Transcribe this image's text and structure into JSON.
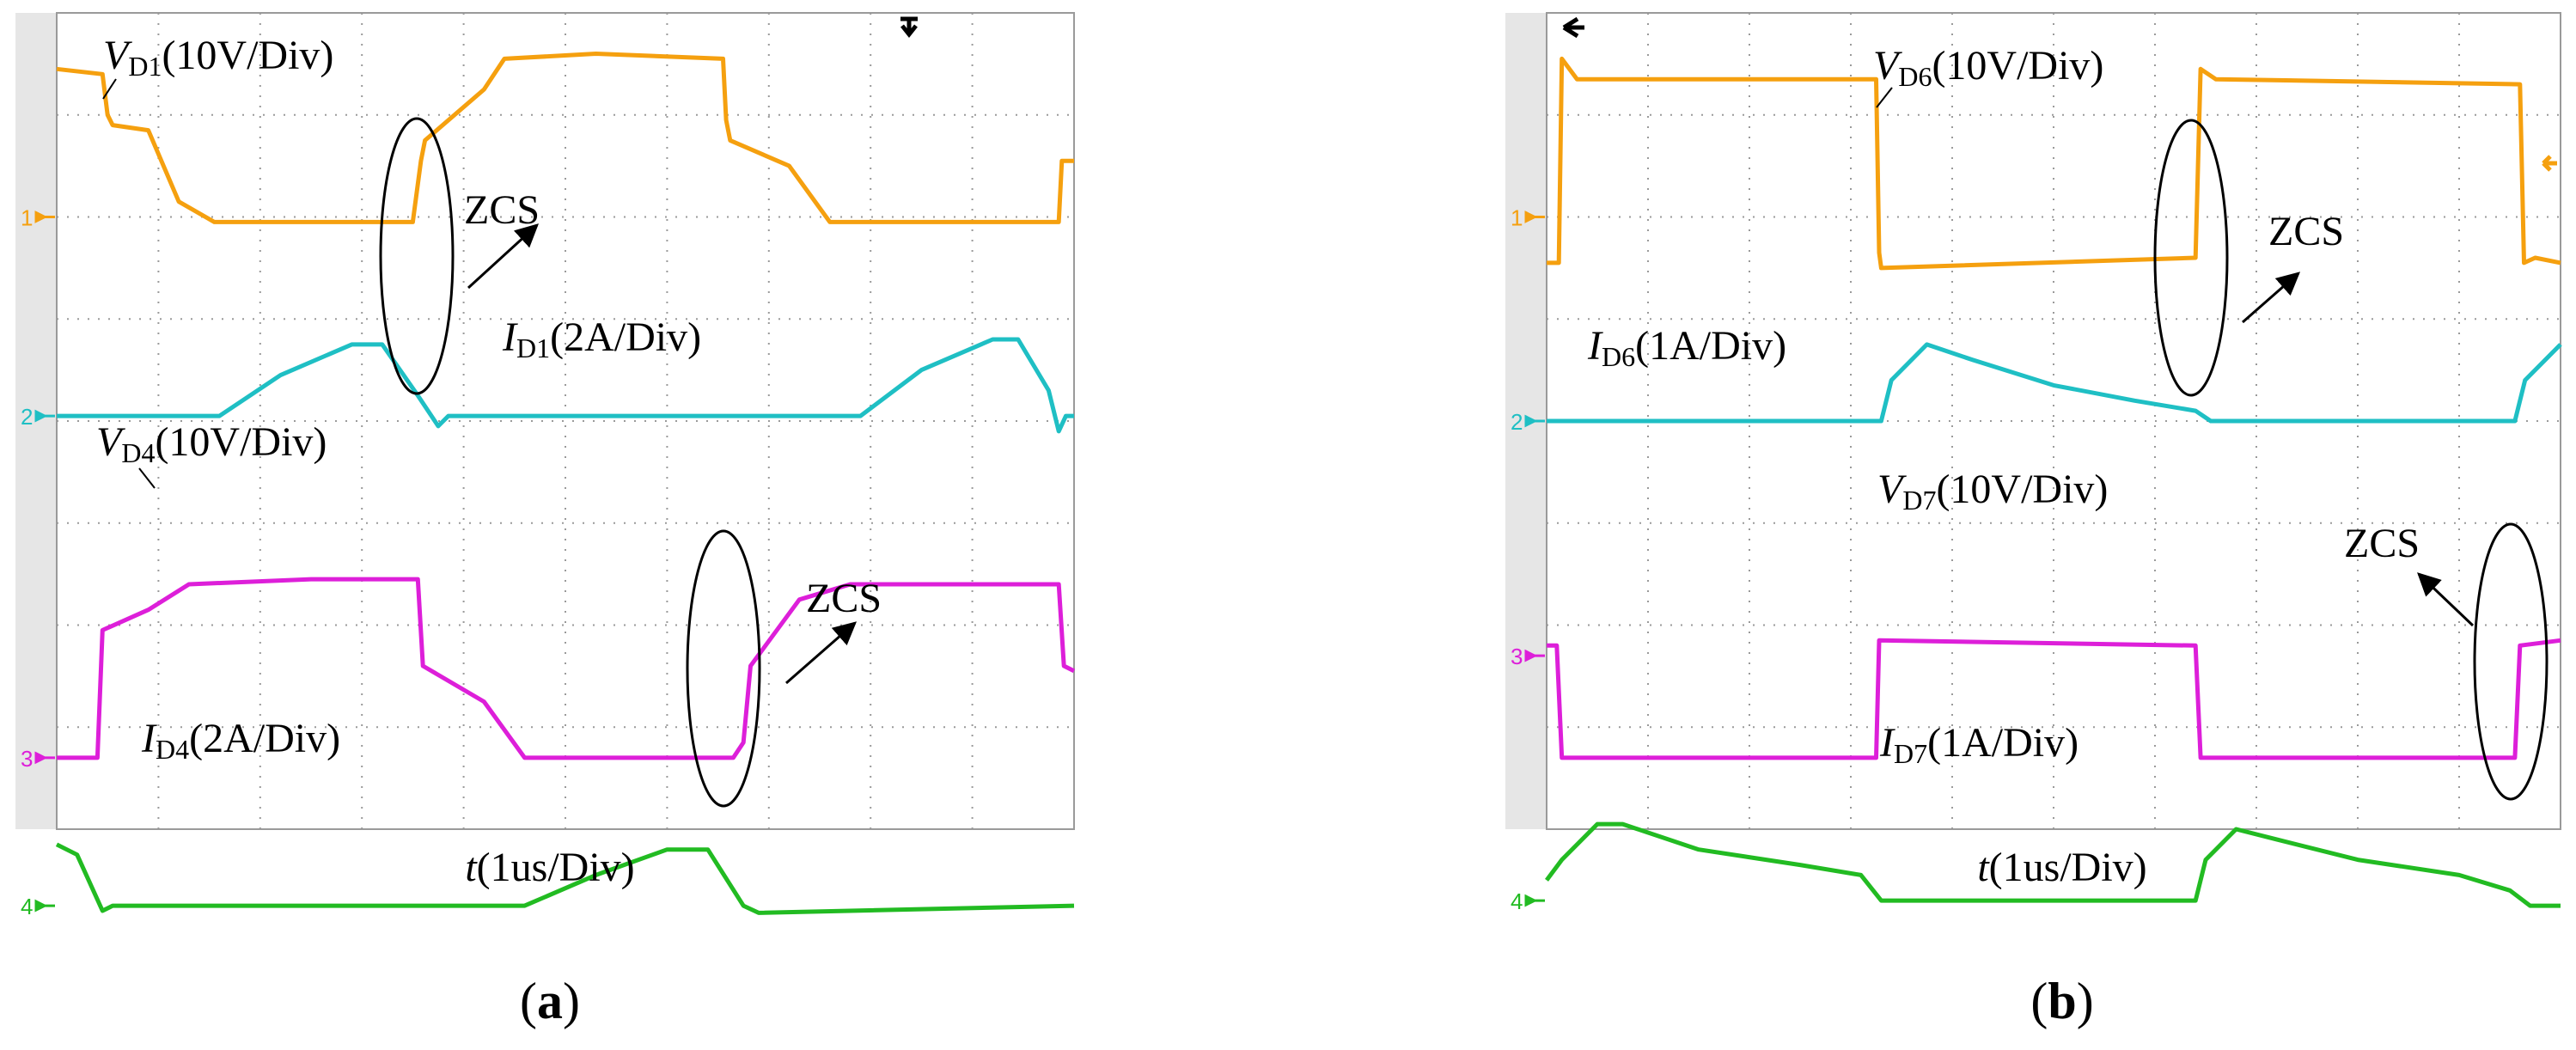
{
  "colors": {
    "ch1": "#f5a00f",
    "ch2": "#1fbfc4",
    "ch3": "#dd1fd9",
    "ch4": "#22bb22",
    "grid": "#9a9a9a",
    "screen_bg": "#ffffff",
    "left_strip": "#e6e6e6"
  },
  "chart_data": [
    {
      "type": "line",
      "panel": "a",
      "caption_open": "(",
      "caption_letter": "a",
      "caption_close": ")",
      "xlabel_var": "t",
      "xlabel_unit": "(1us/Div)",
      "grid": true,
      "divisions": {
        "x": 10,
        "y": 8
      },
      "channel_markers": [
        "1",
        "2",
        "3",
        "4"
      ],
      "series": [
        {
          "channel": "1",
          "label_var": "V",
          "label_sub": "D1",
          "label_scale": "(10V/Div)",
          "color": "#f5a00f",
          "points": [
            [
              0,
              0.55
            ],
            [
              0.45,
              0.6
            ],
            [
              0.5,
              1.0
            ],
            [
              0.55,
              1.1
            ],
            [
              0.9,
              1.15
            ],
            [
              1.2,
              1.85
            ],
            [
              1.55,
              2.05
            ],
            [
              2.9,
              2.05
            ],
            [
              3.5,
              2.05
            ],
            [
              3.58,
              1.45
            ],
            [
              3.62,
              1.25
            ],
            [
              4.2,
              0.75
            ],
            [
              4.4,
              0.45
            ],
            [
              5.3,
              0.4
            ],
            [
              6.55,
              0.45
            ],
            [
              6.58,
              1.05
            ],
            [
              6.62,
              1.25
            ],
            [
              7.2,
              1.5
            ],
            [
              7.6,
              2.05
            ],
            [
              9.85,
              2.05
            ],
            [
              9.88,
              1.45
            ],
            [
              10,
              1.45
            ]
          ]
        },
        {
          "channel": "2",
          "label_var": "I",
          "label_sub": "D1",
          "label_scale": "(2A/Div)",
          "color": "#1fbfc4",
          "points": [
            [
              0,
              3.95
            ],
            [
              1.6,
              3.95
            ],
            [
              2.2,
              3.55
            ],
            [
              2.9,
              3.25
            ],
            [
              3.2,
              3.25
            ],
            [
              3.55,
              3.75
            ],
            [
              3.75,
              4.05
            ],
            [
              3.85,
              3.95
            ],
            [
              7.9,
              3.95
            ],
            [
              8.5,
              3.5
            ],
            [
              9.2,
              3.2
            ],
            [
              9.45,
              3.2
            ],
            [
              9.75,
              3.7
            ],
            [
              9.85,
              4.1
            ],
            [
              9.92,
              3.95
            ],
            [
              10,
              3.95
            ]
          ]
        },
        {
          "channel": "3",
          "label_var": "V",
          "label_sub": "D4",
          "label_scale": "(10V/Div)",
          "color": "#dd1fd9",
          "points": [
            [
              0,
              7.3
            ],
            [
              0.4,
              7.3
            ],
            [
              0.45,
              6.05
            ],
            [
              0.9,
              5.85
            ],
            [
              1.3,
              5.6
            ],
            [
              2.5,
              5.55
            ],
            [
              3.55,
              5.55
            ],
            [
              3.6,
              6.4
            ],
            [
              4.2,
              6.75
            ],
            [
              4.6,
              7.3
            ],
            [
              6.65,
              7.3
            ],
            [
              6.75,
              7.15
            ],
            [
              6.82,
              6.4
            ],
            [
              7.3,
              5.75
            ],
            [
              7.8,
              5.6
            ],
            [
              9.85,
              5.6
            ],
            [
              9.9,
              6.4
            ],
            [
              10,
              6.45
            ]
          ]
        },
        {
          "channel": "4",
          "label_var": "I",
          "label_sub": "D4",
          "label_scale": "(2A/Div)",
          "color": "#22bb22",
          "points": [
            [
              0,
              8.15
            ],
            [
              0.2,
              8.25
            ],
            [
              0.45,
              8.8
            ],
            [
              0.55,
              8.75
            ],
            [
              4.6,
              8.75
            ],
            [
              5.3,
              8.45
            ],
            [
              6.0,
              8.2
            ],
            [
              6.4,
              8.2
            ],
            [
              6.75,
              8.75
            ],
            [
              6.9,
              8.82
            ],
            [
              10,
              8.75
            ]
          ]
        }
      ],
      "annotations": [
        {
          "text": "ZCS",
          "target_channel": "2"
        },
        {
          "text": "ZCS",
          "target_channel": "4"
        }
      ]
    },
    {
      "type": "line",
      "panel": "b",
      "caption_open": "(",
      "caption_letter": "b",
      "caption_close": ")",
      "xlabel_var": "t",
      "xlabel_unit": "(1us/Div)",
      "grid": true,
      "divisions": {
        "x": 10,
        "y": 8
      },
      "channel_markers": [
        "1",
        "2",
        "3",
        "4"
      ],
      "series": [
        {
          "channel": "1",
          "label_var": "V",
          "label_sub": "D6",
          "label_scale": "(10V/Div)",
          "color": "#f5a00f",
          "points": [
            [
              0,
              2.45
            ],
            [
              0.12,
              2.45
            ],
            [
              0.15,
              0.45
            ],
            [
              0.3,
              0.65
            ],
            [
              3.25,
              0.65
            ],
            [
              3.28,
              2.35
            ],
            [
              3.3,
              2.5
            ],
            [
              6.4,
              2.4
            ],
            [
              6.45,
              0.55
            ],
            [
              6.6,
              0.65
            ],
            [
              9.6,
              0.7
            ],
            [
              9.64,
              2.45
            ],
            [
              9.75,
              2.4
            ],
            [
              10,
              2.45
            ]
          ]
        },
        {
          "channel": "2",
          "label_var": "I",
          "label_sub": "D6",
          "label_scale": "(1A/Div)",
          "color": "#1fbfc4",
          "points": [
            [
              0,
              4.0
            ],
            [
              3.3,
              4.0
            ],
            [
              3.4,
              3.6
            ],
            [
              3.75,
              3.25
            ],
            [
              4.2,
              3.4
            ],
            [
              5.0,
              3.65
            ],
            [
              5.8,
              3.8
            ],
            [
              6.4,
              3.9
            ],
            [
              6.55,
              4.0
            ],
            [
              9.55,
              4.0
            ],
            [
              9.65,
              3.6
            ],
            [
              10,
              3.25
            ]
          ]
        },
        {
          "channel": "3",
          "label_var": "V",
          "label_sub": "D7",
          "label_scale": "(10V/Div)",
          "color": "#dd1fd9",
          "points": [
            [
              0,
              6.2
            ],
            [
              0.1,
              6.2
            ],
            [
              0.15,
              7.3
            ],
            [
              3.25,
              7.3
            ],
            [
              3.28,
              6.15
            ],
            [
              6.4,
              6.2
            ],
            [
              6.45,
              7.3
            ],
            [
              9.55,
              7.3
            ],
            [
              9.6,
              6.2
            ],
            [
              10,
              6.15
            ]
          ]
        },
        {
          "channel": "4",
          "label_var": "I",
          "label_sub": "D7",
          "label_scale": "(1A/Div)",
          "color": "#22bb22",
          "points": [
            [
              0,
              8.5
            ],
            [
              0.15,
              8.3
            ],
            [
              0.5,
              7.95
            ],
            [
              0.75,
              7.95
            ],
            [
              1.5,
              8.2
            ],
            [
              2.5,
              8.35
            ],
            [
              3.1,
              8.45
            ],
            [
              3.3,
              8.7
            ],
            [
              6.4,
              8.7
            ],
            [
              6.5,
              8.3
            ],
            [
              6.8,
              8.0
            ],
            [
              7.2,
              8.1
            ],
            [
              8.0,
              8.3
            ],
            [
              9.0,
              8.45
            ],
            [
              9.5,
              8.6
            ],
            [
              9.7,
              8.75
            ],
            [
              10,
              8.75
            ]
          ]
        }
      ],
      "annotations": [
        {
          "text": "ZCS",
          "target_channel": "2"
        },
        {
          "text": "ZCS",
          "target_channel": "4"
        }
      ]
    }
  ]
}
